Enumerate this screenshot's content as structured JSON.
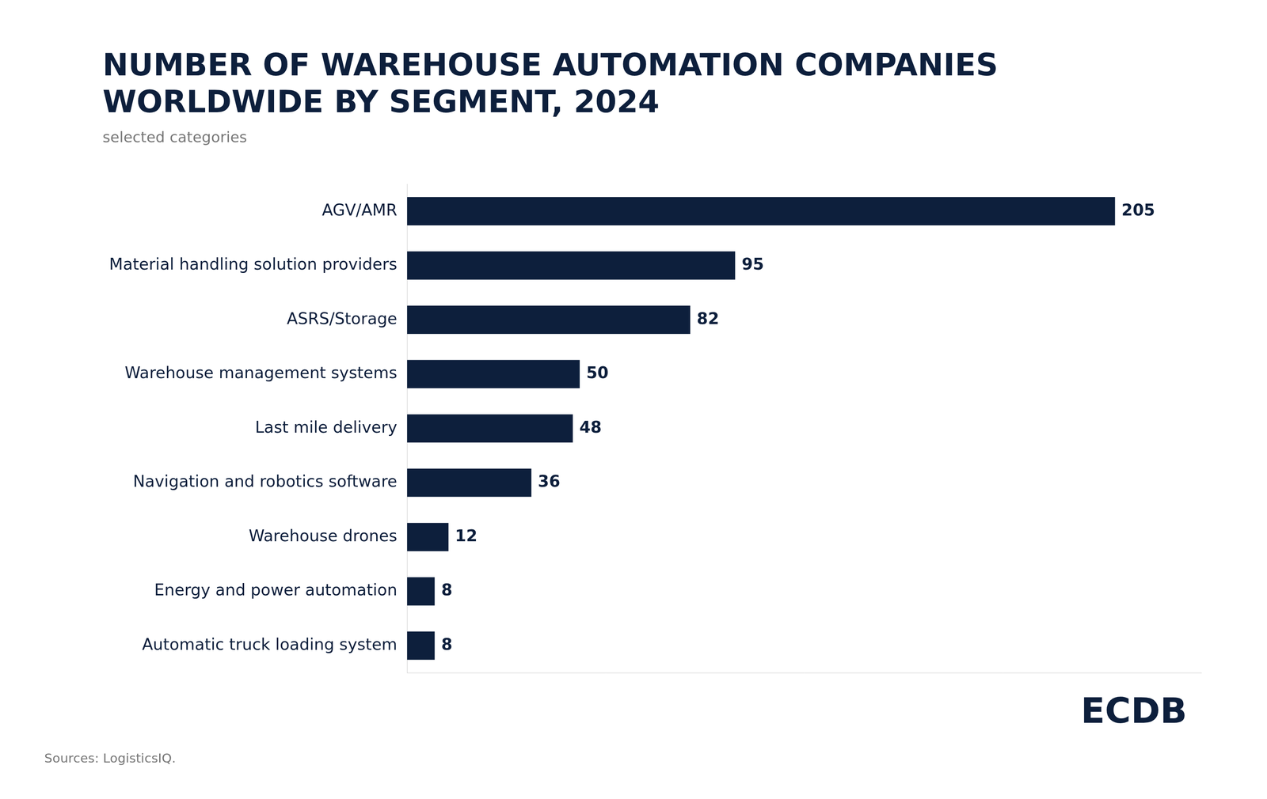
{
  "chart_data": {
    "type": "bar",
    "orientation": "horizontal",
    "title": [
      "NUMBER OF WAREHOUSE AUTOMATION COMPANIES",
      "WORLDWIDE BY SEGMENT, 2024"
    ],
    "subtitle": "selected categories",
    "categories": [
      "AGV/AMR",
      "Material handling solution providers",
      "ASRS/Storage",
      "Warehouse management systems",
      "Last mile delivery",
      "Navigation and robotics software",
      "Warehouse drones",
      "Energy and power automation",
      "Automatic truck loading system"
    ],
    "values": [
      205,
      95,
      82,
      50,
      48,
      36,
      12,
      8,
      8
    ],
    "color": "#0d1f3c",
    "xlim": [
      0,
      230
    ],
    "grid": false,
    "tick_labels": "y",
    "data_labels": true,
    "annotations": [
      "Sources: LogisticsIQ.",
      "ECDB"
    ]
  }
}
